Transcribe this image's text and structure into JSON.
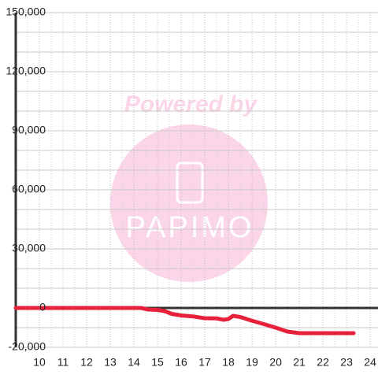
{
  "chart_data": {
    "type": "line",
    "watermark": {
      "top": "Powered by",
      "brand": "PAPIMO"
    },
    "x": [
      9,
      14.3,
      14.6,
      15,
      15.3,
      15.6,
      16,
      16.5,
      17,
      17.5,
      17.8,
      18,
      18.2,
      18.5,
      19,
      19.5,
      20,
      20.5,
      21,
      22,
      23.3
    ],
    "series": [
      {
        "color": "#e8213b",
        "values": [
          0,
          0,
          -800,
          -1000,
          -1600,
          -3000,
          -3800,
          -4300,
          -5200,
          -5300,
          -6000,
          -5600,
          -4000,
          -4600,
          -6500,
          -8200,
          -10000,
          -12000,
          -12800,
          -12800,
          -12800
        ]
      }
    ],
    "xlim": [
      9,
      24.33
    ],
    "xticks": [
      10,
      11,
      12,
      13,
      14,
      15,
      16,
      17,
      18,
      19,
      20,
      21,
      22,
      23,
      24
    ],
    "minor_xticks": [
      9.5,
      10.5,
      11.5,
      12.5,
      13.5,
      14.5,
      15.5,
      16.5,
      17.5,
      18.5,
      19.5,
      20.5,
      21.5,
      22.5,
      23.5
    ],
    "ylim": [
      -20000,
      150000
    ],
    "yticks": [
      {
        "value": -20000,
        "label": "-20,000"
      },
      0,
      {
        "value": 30000,
        "label": "30,000"
      },
      {
        "value": 60000,
        "label": "60,000"
      },
      {
        "value": 90000,
        "label": "90,000"
      },
      {
        "value": 120000,
        "label": "120,000"
      },
      {
        "value": 150000,
        "label": "150,000"
      }
    ],
    "minor_yticks": [
      -10000,
      10000,
      20000,
      40000,
      50000,
      70000,
      80000,
      100000,
      110000,
      130000,
      140000
    ],
    "grid": true
  }
}
